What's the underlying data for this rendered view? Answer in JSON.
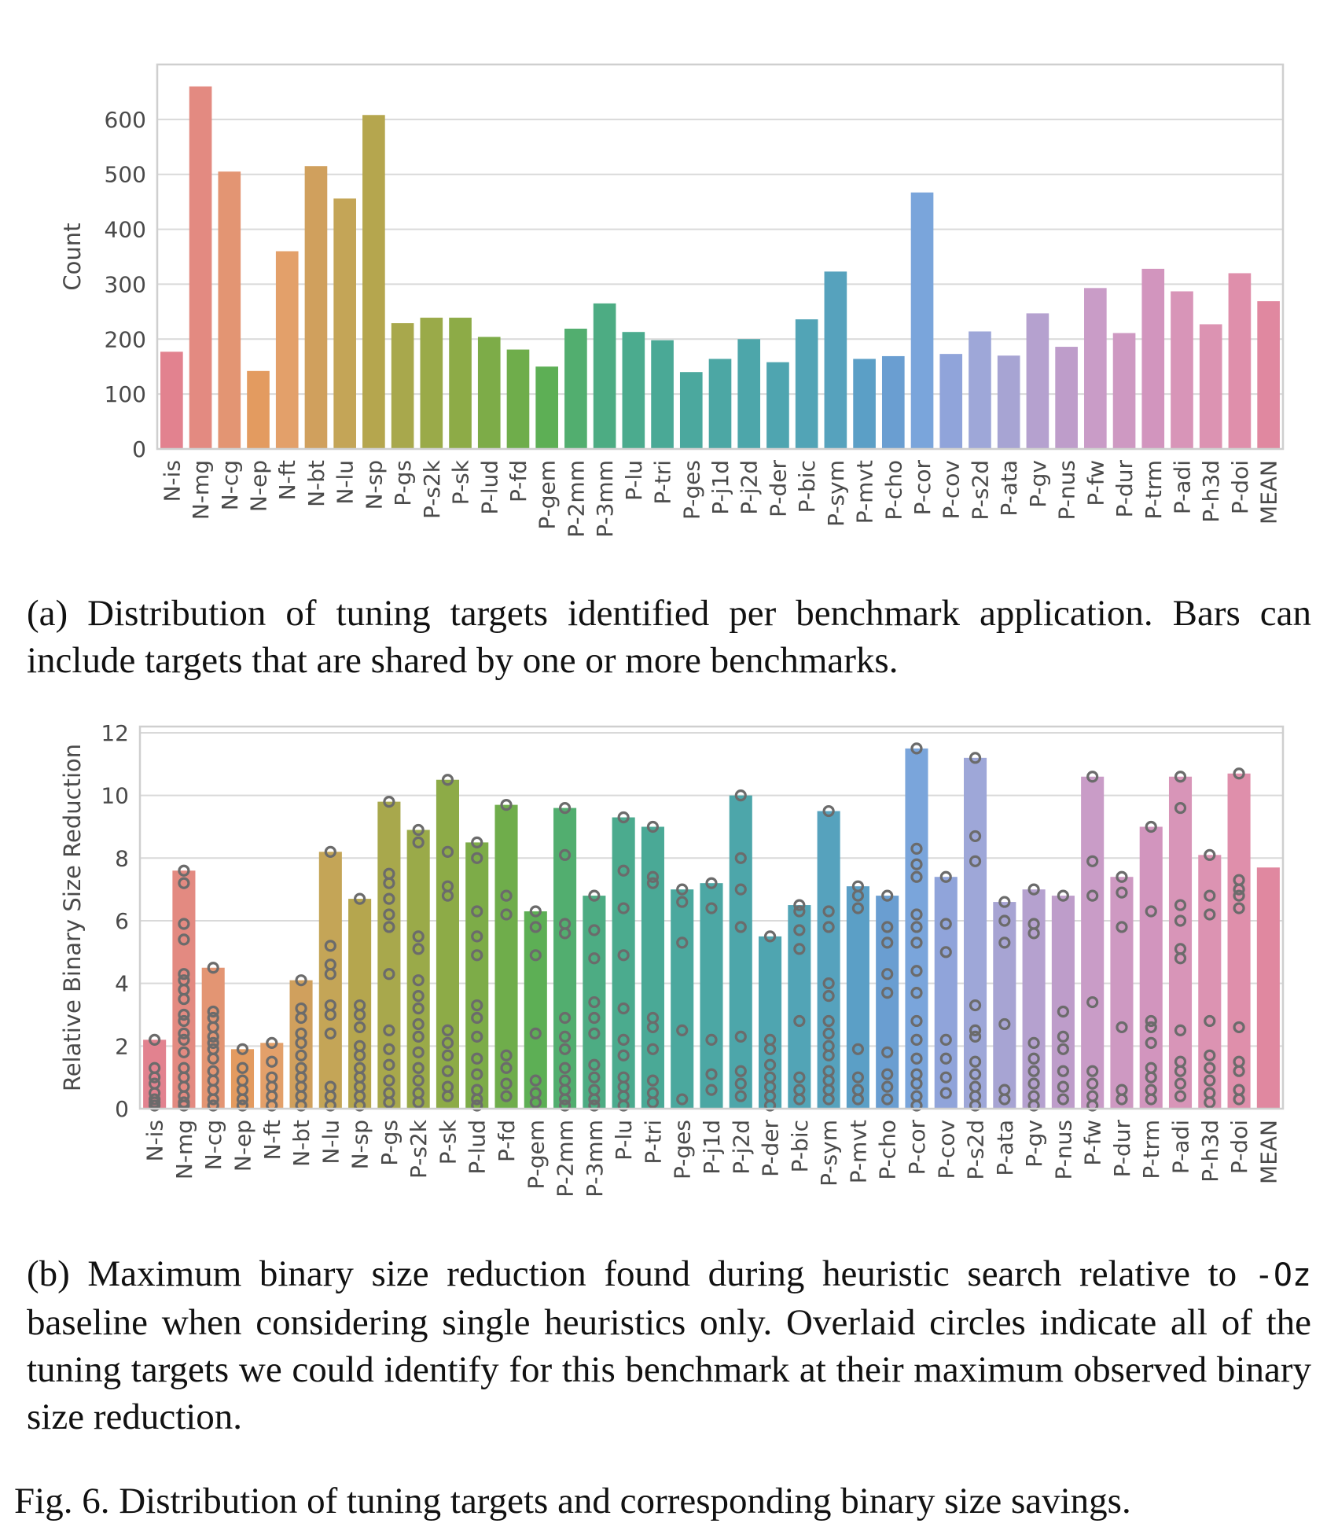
{
  "chart_data": [
    {
      "type": "bar",
      "ylabel": "Count",
      "ylim": [
        0,
        700
      ],
      "yticks": [
        0,
        100,
        200,
        300,
        400,
        500,
        600
      ],
      "grid": true,
      "categories": [
        "N-is",
        "N-mg",
        "N-cg",
        "N-ep",
        "N-ft",
        "N-bt",
        "N-lu",
        "N-sp",
        "P-gs",
        "P-s2k",
        "P-sk",
        "P-lud",
        "P-fd",
        "P-gem",
        "P-2mm",
        "P-3mm",
        "P-lu",
        "P-tri",
        "P-ges",
        "P-j1d",
        "P-j2d",
        "P-der",
        "P-bic",
        "P-sym",
        "P-mvt",
        "P-cho",
        "P-cor",
        "P-cov",
        "P-s2d",
        "P-ata",
        "P-gv",
        "P-nus",
        "P-fw",
        "P-dur",
        "P-trm",
        "P-adi",
        "P-h3d",
        "P-doi",
        "MEAN"
      ],
      "values": [
        177,
        660,
        505,
        142,
        360,
        515,
        456,
        608,
        229,
        239,
        239,
        204,
        181,
        150,
        219,
        265,
        213,
        198,
        140,
        164,
        200,
        158,
        236,
        323,
        164,
        169,
        467,
        173,
        214,
        170,
        247,
        186,
        293,
        211,
        328,
        287,
        227,
        320,
        269
      ]
    },
    {
      "type": "bar",
      "ylabel": "Relative Binary Size Reduction",
      "ylim": [
        0,
        12.2
      ],
      "yticks": [
        0,
        2,
        4,
        6,
        8,
        10,
        12
      ],
      "grid": true,
      "categories": [
        "N-is",
        "N-mg",
        "N-cg",
        "N-ep",
        "N-ft",
        "N-bt",
        "N-lu",
        "N-sp",
        "P-gs",
        "P-s2k",
        "P-sk",
        "P-lud",
        "P-fd",
        "P-gem",
        "P-2mm",
        "P-3mm",
        "P-lu",
        "P-tri",
        "P-ges",
        "P-j1d",
        "P-j2d",
        "P-der",
        "P-bic",
        "P-sym",
        "P-mvt",
        "P-cho",
        "P-cor",
        "P-cov",
        "P-s2d",
        "P-ata",
        "P-gv",
        "P-nus",
        "P-fw",
        "P-dur",
        "P-trm",
        "P-adi",
        "P-h3d",
        "P-doi",
        "MEAN"
      ],
      "values": [
        2.2,
        7.6,
        4.5,
        1.9,
        2.1,
        4.1,
        8.2,
        6.7,
        9.8,
        8.9,
        10.5,
        8.5,
        9.7,
        6.3,
        9.6,
        6.8,
        9.3,
        9.0,
        7.0,
        7.2,
        10.0,
        5.5,
        6.5,
        9.5,
        7.1,
        6.8,
        11.5,
        7.4,
        11.2,
        6.6,
        7.0,
        6.8,
        10.6,
        7.4,
        9.0,
        10.6,
        8.1,
        10.7,
        7.7
      ],
      "points": [
        [
          2.2,
          1.3,
          1.0,
          0.8,
          0.5,
          0.3,
          0.2,
          0.1
        ],
        [
          7.6,
          7.2,
          5.9,
          5.4,
          4.3,
          4.1,
          3.8,
          3.5,
          3.0,
          2.8,
          2.4,
          2.2,
          1.8,
          1.3,
          1.0,
          0.7,
          0.4,
          0.2,
          0.1
        ],
        [
          4.5,
          3.1,
          2.9,
          2.6,
          2.3,
          2.1,
          1.9,
          1.6,
          1.2,
          0.9,
          0.6,
          0.3,
          0.1
        ],
        [
          1.9,
          1.3,
          0.9,
          0.6,
          0.3,
          0.1
        ],
        [
          2.1,
          1.5,
          1.0,
          0.7,
          0.4,
          0.1
        ],
        [
          4.1,
          3.2,
          2.9,
          2.4,
          2.1,
          1.7,
          1.3,
          1.0,
          0.7,
          0.4,
          0.1
        ],
        [
          8.2,
          5.2,
          4.6,
          4.3,
          3.3,
          3.0,
          2.4,
          0.7,
          0.4,
          0.1
        ],
        [
          6.7,
          3.3,
          3.0,
          2.6,
          2.0,
          1.7,
          1.3,
          1.0,
          0.7,
          0.4,
          0.1
        ],
        [
          9.8,
          7.5,
          7.2,
          6.7,
          6.2,
          5.8,
          4.3,
          2.5,
          1.9,
          1.4,
          0.9,
          0.5,
          0.2
        ],
        [
          8.9,
          8.5,
          5.5,
          5.1,
          4.1,
          3.6,
          3.2,
          2.7,
          2.3,
          1.8,
          1.3,
          0.9,
          0.5,
          0.2
        ],
        [
          10.5,
          8.2,
          7.1,
          6.8,
          2.5,
          2.1,
          1.7,
          1.2,
          0.7,
          0.4
        ],
        [
          8.5,
          8.0,
          6.3,
          5.5,
          4.9,
          3.3,
          2.9,
          2.3,
          1.6,
          1.1,
          0.6,
          0.3,
          0.1
        ],
        [
          9.7,
          6.8,
          6.2,
          1.7,
          1.3,
          0.8,
          0.4
        ],
        [
          6.3,
          5.8,
          4.9,
          2.4,
          0.9,
          0.5,
          0.2
        ],
        [
          9.6,
          8.1,
          5.9,
          5.6,
          2.9,
          2.3,
          1.9,
          1.3,
          0.9,
          0.6,
          0.3,
          0.1
        ],
        [
          6.8,
          5.7,
          4.8,
          3.4,
          2.9,
          2.4,
          1.4,
          1.0,
          0.6,
          0.3,
          0.1
        ],
        [
          9.3,
          7.6,
          6.4,
          4.9,
          3.2,
          2.2,
          1.7,
          1.0,
          0.7,
          0.4,
          0.1
        ],
        [
          9.0,
          7.4,
          7.2,
          2.9,
          2.6,
          1.9,
          0.9,
          0.5,
          0.2
        ],
        [
          7.0,
          6.6,
          5.3,
          2.5,
          0.3
        ],
        [
          7.2,
          6.4,
          2.2,
          1.1,
          0.6
        ],
        [
          10.0,
          8.0,
          7.0,
          5.8,
          2.3,
          1.2,
          0.8,
          0.4
        ],
        [
          5.5,
          2.2,
          1.9,
          1.4,
          1.0,
          0.7,
          0.4,
          0.1
        ],
        [
          6.5,
          6.3,
          5.7,
          5.1,
          2.8,
          1.0,
          0.6,
          0.3
        ],
        [
          9.5,
          6.3,
          5.8,
          4.0,
          3.6,
          2.8,
          2.4,
          2.0,
          1.7,
          1.2,
          0.9,
          0.6,
          0.3
        ],
        [
          7.1,
          6.8,
          6.4,
          1.9,
          1.0,
          0.6,
          0.3
        ],
        [
          6.8,
          5.8,
          5.3,
          4.3,
          3.7,
          1.8,
          1.1,
          0.7,
          0.3
        ],
        [
          11.5,
          8.3,
          7.8,
          7.4,
          6.2,
          5.8,
          5.3,
          4.4,
          3.7,
          2.8,
          2.2,
          1.6,
          1.1,
          0.8,
          0.4,
          0.1
        ],
        [
          7.4,
          5.9,
          5.0,
          2.2,
          1.6,
          1.0,
          0.5
        ],
        [
          11.2,
          8.7,
          7.9,
          3.3,
          2.5,
          2.3,
          1.5,
          1.1,
          0.7,
          0.4,
          0.1
        ],
        [
          6.6,
          6.0,
          5.3,
          2.7,
          0.6,
          0.3
        ],
        [
          7.0,
          5.9,
          5.6,
          2.1,
          1.6,
          1.2,
          0.8,
          0.4,
          0.1
        ],
        [
          6.8,
          3.1,
          2.3,
          1.9,
          1.2,
          0.7,
          0.3
        ],
        [
          10.6,
          7.9,
          6.8,
          3.4,
          1.2,
          0.8,
          0.4,
          0.1
        ],
        [
          7.4,
          6.9,
          5.8,
          2.6,
          0.6,
          0.3
        ],
        [
          9.0,
          6.3,
          2.8,
          2.6,
          2.1,
          1.3,
          1.0,
          0.6,
          0.3
        ],
        [
          10.6,
          9.6,
          6.5,
          6.0,
          5.1,
          4.8,
          2.5,
          1.5,
          1.2,
          0.8,
          0.4
        ],
        [
          8.1,
          6.8,
          6.2,
          2.8,
          1.7,
          1.3,
          0.9,
          0.5,
          0.2
        ],
        [
          10.7,
          7.3,
          7.0,
          6.8,
          6.4,
          2.6,
          1.5,
          1.2,
          0.6,
          0.3
        ],
        []
      ]
    }
  ],
  "captions": {
    "a": "(a) Distribution of tuning targets identified per benchmark application. Bars can include targets that are shared by one or more benchmarks.",
    "b_part1": "(b) Maximum binary size reduction found during heuristic search relative to ",
    "b_code": "-Oz",
    "b_part2": " baseline when considering single heuristics only. Overlaid circles indicate all of the tuning targets we could identify for this benchmark at their maximum observed binary size reduction.",
    "figure": "Fig. 6.  Distribution of tuning targets and corresponding binary size savings."
  },
  "colors": [
    "#e2828f",
    "#e38a81",
    "#e39573",
    "#e39b60",
    "#e3a06a",
    "#d0a05d",
    "#c4a557",
    "#b5a64e",
    "#a8a84c",
    "#9aaa49",
    "#8dab47",
    "#7dac48",
    "#6fad4b",
    "#5daf55",
    "#52ae6f",
    "#4dac83",
    "#4bab8e",
    "#4aa996",
    "#4ba89e",
    "#4ca7a4",
    "#4da6aa",
    "#4fa5b0",
    "#52a4b6",
    "#56a2bd",
    "#5b9fc6",
    "#6a9ed1",
    "#7aa5db",
    "#90a4da",
    "#9ea7d8",
    "#a7a4d3",
    "#b5a1cf",
    "#be9dca",
    "#c99cc7",
    "#ce99c2",
    "#d295be",
    "#d895b8",
    "#dc93b2",
    "#df8fab",
    "#e088a0"
  ]
}
